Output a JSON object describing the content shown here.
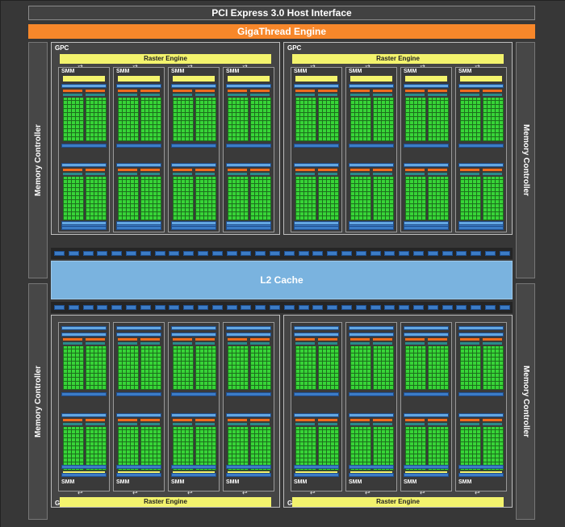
{
  "header": {
    "pcie_label": "PCI Express 3.0 Host Interface",
    "giga_label": "GigaThread Engine"
  },
  "memory_controllers": [
    {
      "label": "Memory Controller"
    },
    {
      "label": "Memory Controller"
    },
    {
      "label": "Memory Controller"
    },
    {
      "label": "Memory Controller"
    }
  ],
  "l2_label": "L2 Cache",
  "gpcs": [
    {
      "label": "GPC",
      "raster_label": "Raster Engine",
      "smm_labels": [
        "SMM",
        "SMM",
        "SMM",
        "SMM"
      ]
    },
    {
      "label": "GPC",
      "raster_label": "Raster Engine",
      "smm_labels": [
        "SMM",
        "SMM",
        "SMM",
        "SMM"
      ]
    },
    {
      "label": "GPC",
      "raster_label": "Raster Engine",
      "smm_labels": [
        "SMM",
        "SMM",
        "SMM",
        "SMM"
      ]
    },
    {
      "label": "GPC",
      "raster_label": "Raster Engine",
      "smm_labels": [
        "SMM",
        "SMM",
        "SMM",
        "SMM"
      ]
    }
  ],
  "colors": {
    "background": "#373737",
    "giga": "#f7872a",
    "l2": "#7ab3df",
    "raster": "#f3f36d",
    "core": "#37d437",
    "unit_blue": "#3c7cc6"
  }
}
